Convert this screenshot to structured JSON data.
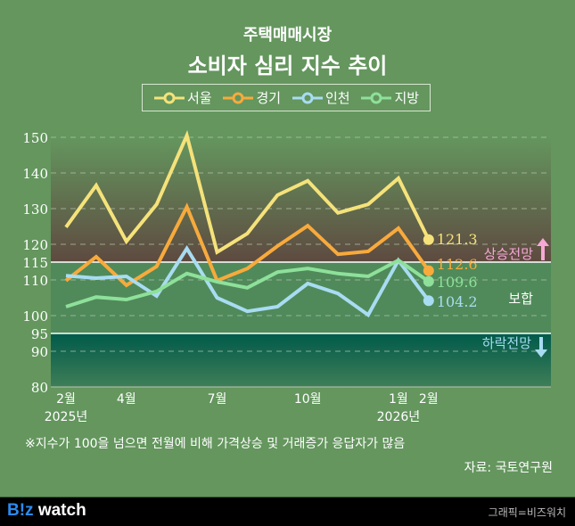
{
  "header": {
    "title_line1": "주택매매시장",
    "title_line2": "소비자 심리 지수 추이"
  },
  "chart_data": {
    "type": "line",
    "title": "주택매매시장 소비자 심리 지수 추이",
    "x": [
      "2025-02",
      "2025-03",
      "2025-04",
      "2025-05",
      "2025-06",
      "2025-07",
      "2025-08",
      "2025-09",
      "2025-10",
      "2025-11",
      "2025-12",
      "2026-01",
      "2026-02"
    ],
    "x_tick_labels": [
      {
        "index": 0,
        "label": "2월",
        "sub": "2025년"
      },
      {
        "index": 2,
        "label": "4월"
      },
      {
        "index": 5,
        "label": "7월"
      },
      {
        "index": 8,
        "label": "10월"
      },
      {
        "index": 11,
        "label": "1월",
        "sub": "2026년"
      },
      {
        "index": 12,
        "label": "2월"
      }
    ],
    "ylim": [
      80,
      150
    ],
    "y_ticks": [
      80,
      90,
      95,
      100,
      110,
      115,
      120,
      130,
      140,
      150
    ],
    "grid": true,
    "legend_position": "top-center",
    "series": [
      {
        "name": "서울",
        "color": "#f5e27a",
        "values": [
          124.8,
          136.5,
          120.8,
          131.2,
          150.5,
          117.8,
          123,
          133.8,
          137.8,
          128.8,
          131.2,
          138.5,
          121.3
        ],
        "end_label": "121.3"
      },
      {
        "name": "경기",
        "color": "#f8aa3c",
        "values": [
          109.8,
          116.5,
          108.5,
          113.8,
          130.5,
          109.8,
          113.2,
          119.5,
          125.2,
          117.2,
          118,
          124.5,
          112.6
        ],
        "end_label": "112.6"
      },
      {
        "name": "인천",
        "color": "#a8dcf2",
        "values": [
          111.2,
          110.5,
          111,
          105.5,
          118.8,
          105,
          101.2,
          102.5,
          109,
          106.2,
          100.2,
          115.5,
          104.2
        ],
        "end_label": "104.2"
      },
      {
        "name": "지방",
        "color": "#8ee09a",
        "values": [
          102.5,
          105.2,
          104.5,
          106.8,
          111.8,
          109.5,
          107.8,
          112.2,
          113.2,
          111.8,
          111,
          115.5,
          109.6
        ],
        "end_label": "109.6"
      }
    ],
    "bands": [
      {
        "label": "상승전망",
        "from": 115,
        "to": 150,
        "color": "#5e4a40",
        "arrow": "up",
        "arrow_color": "#f7a8d6"
      },
      {
        "label": "보합",
        "from": 95,
        "to": 115,
        "color": "#508a5a"
      },
      {
        "label": "하락전망",
        "from": 80,
        "to": 95,
        "color": "#005e4e",
        "arrow": "down",
        "arrow_color": "#a8dcf2"
      }
    ]
  },
  "footnote": "※지수가 100을 넘으면 전월에 비해 가격상승 및 거래증가 응답자가 많음",
  "source": "자료: 국토연구원",
  "footer": {
    "logo": "B!z watch",
    "credit": "그래픽=비즈워치"
  }
}
